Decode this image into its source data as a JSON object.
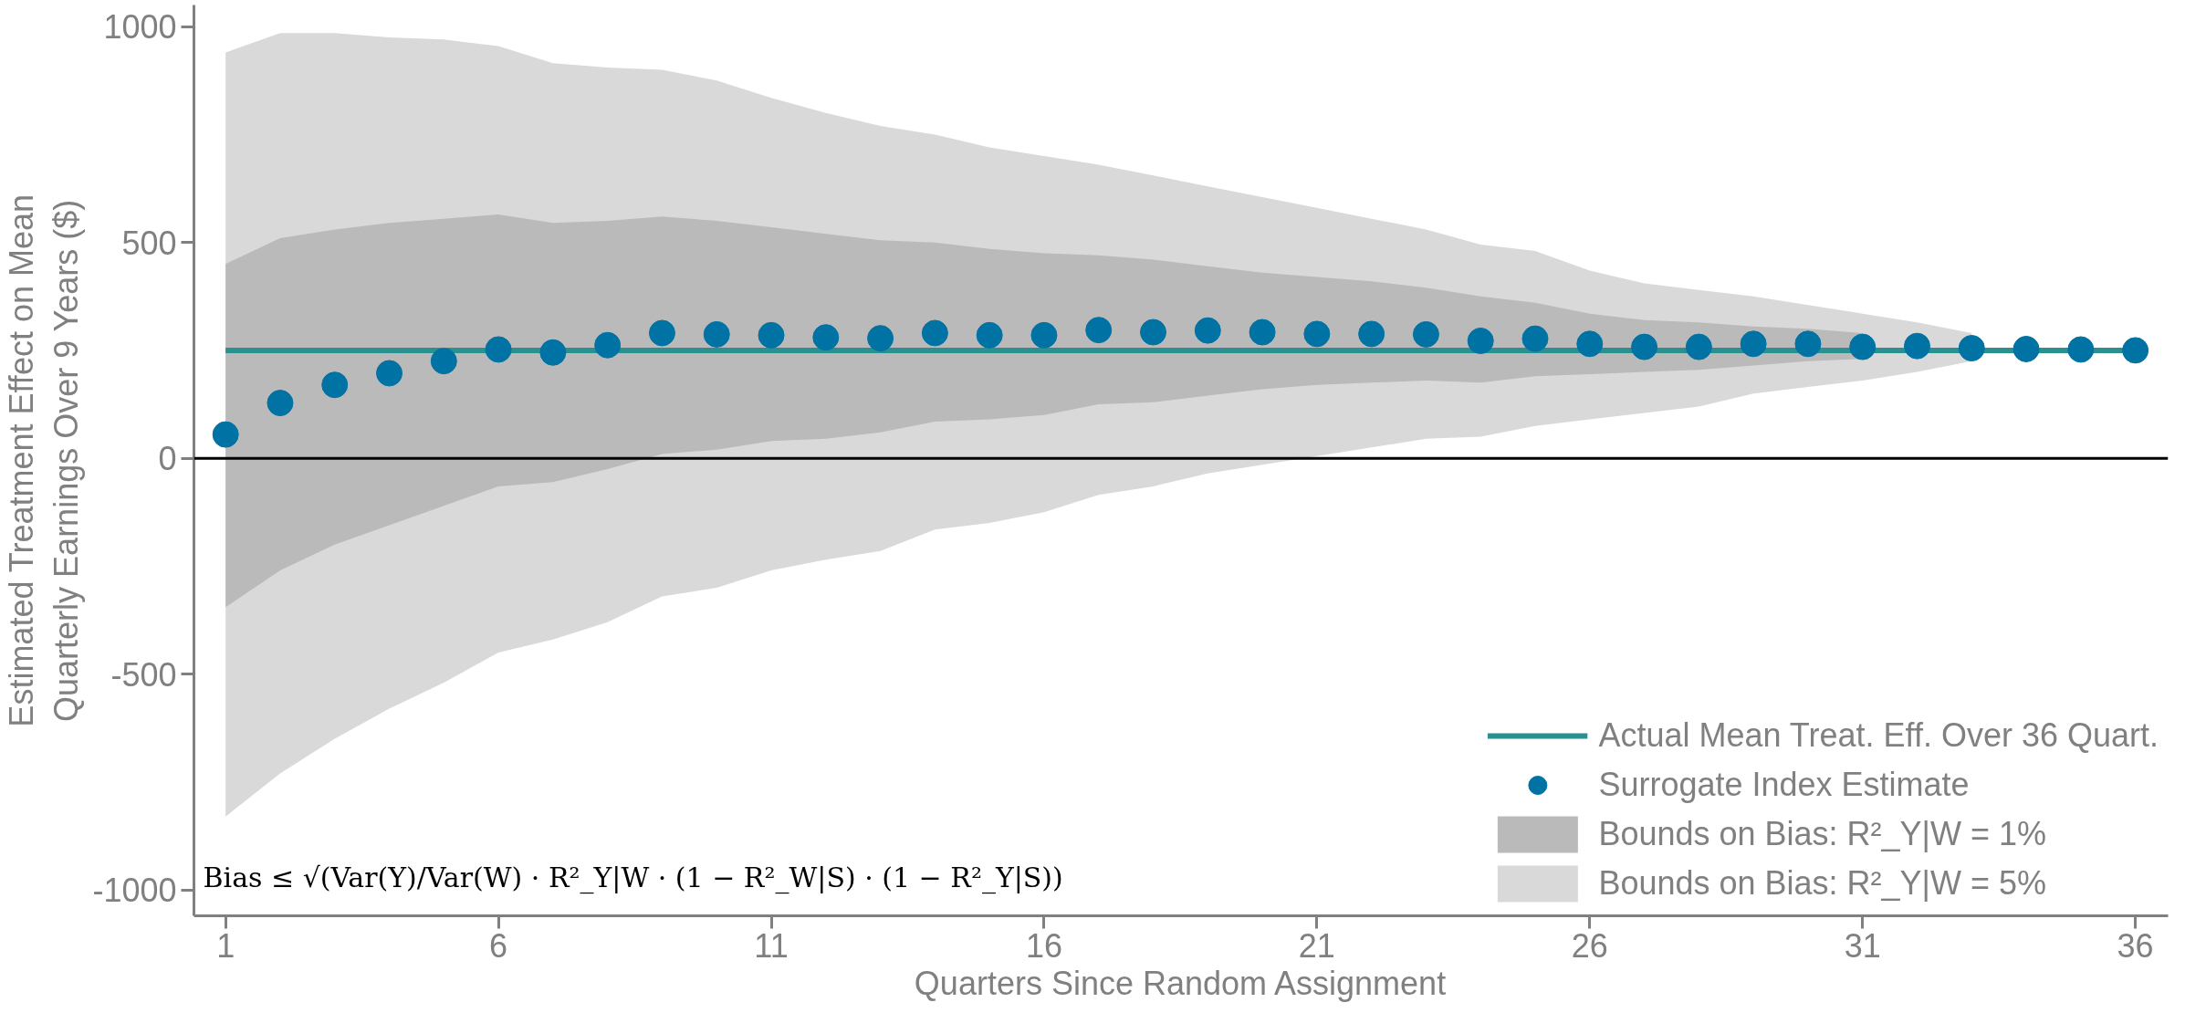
{
  "chart_data": {
    "type": "scatter",
    "xlabel": "Quarters Since Random Assignment",
    "ylabel": "Estimated Treatment Effect on Mean\nQuarterly Earnings Over 9 Years ($)",
    "x": [
      1,
      2,
      3,
      4,
      5,
      6,
      7,
      8,
      9,
      10,
      11,
      12,
      13,
      14,
      15,
      16,
      17,
      18,
      19,
      20,
      21,
      22,
      23,
      24,
      25,
      26,
      27,
      28,
      29,
      30,
      31,
      32,
      33,
      34,
      35,
      36
    ],
    "series": [
      {
        "type": "area",
        "name": "Bounds on Bias: R²_Y|W = 5%",
        "color": "#d9d9d9",
        "values": [
          null,
          null,
          null,
          null,
          null,
          null,
          null,
          null,
          null,
          null,
          null,
          null,
          null,
          null,
          null,
          null,
          null,
          null,
          null,
          null,
          null,
          null,
          null,
          null,
          null,
          null,
          null,
          null,
          null,
          null,
          null,
          null,
          null,
          null,
          null,
          null
        ],
        "upper": [
          940,
          985,
          985,
          975,
          970,
          955,
          915,
          905,
          900,
          875,
          835,
          800,
          770,
          750,
          720,
          700,
          680,
          655,
          630,
          605,
          580,
          555,
          530,
          495,
          480,
          435,
          405,
          390,
          375,
          355,
          335,
          315,
          290,
          null,
          null,
          null
        ],
        "lower": [
          -830,
          -730,
          -650,
          -580,
          -520,
          -450,
          -420,
          -380,
          -320,
          -300,
          -260,
          -235,
          -215,
          -165,
          -150,
          -125,
          -85,
          -65,
          -35,
          -15,
          5,
          25,
          45,
          50,
          75,
          90,
          105,
          120,
          150,
          165,
          180,
          200,
          225,
          null,
          null,
          null
        ]
      },
      {
        "type": "area",
        "name": "Bounds on Bias: R²_Y|W = 1%",
        "color": "#bababa",
        "values": [
          null,
          null,
          null,
          null,
          null,
          null,
          null,
          null,
          null,
          null,
          null,
          null,
          null,
          null,
          null,
          null,
          null,
          null,
          null,
          null,
          null,
          null,
          null,
          null,
          null,
          null,
          null,
          null,
          null,
          null,
          null,
          null,
          null,
          null,
          null,
          null
        ],
        "upper": [
          450,
          510,
          530,
          545,
          555,
          565,
          545,
          550,
          560,
          550,
          535,
          520,
          505,
          500,
          485,
          475,
          470,
          460,
          445,
          430,
          420,
          410,
          395,
          375,
          360,
          335,
          320,
          315,
          305,
          300,
          290,
          null,
          null,
          null,
          null,
          null
        ],
        "lower": [
          -345,
          -260,
          -200,
          -155,
          -110,
          -65,
          -55,
          -25,
          10,
          20,
          40,
          45,
          60,
          85,
          90,
          100,
          125,
          130,
          145,
          160,
          170,
          175,
          180,
          175,
          190,
          195,
          200,
          205,
          215,
          225,
          230,
          null,
          null,
          null,
          null,
          null
        ]
      },
      {
        "type": "line",
        "name": "Actual Mean Treat. Eff. Over 36 Quart.",
        "color": "#2a9090",
        "x": [
          1,
          36
        ],
        "values": [
          250,
          250
        ]
      },
      {
        "name": "Surrogate Index Estimate",
        "color": "#0072a3",
        "marker": "circle",
        "values": [
          55,
          128,
          170,
          197,
          225,
          252,
          245,
          262,
          290,
          287,
          285,
          280,
          278,
          290,
          285,
          285,
          297,
          292,
          296,
          292,
          288,
          288,
          287,
          272,
          277,
          265,
          258,
          258,
          265,
          265,
          258,
          260,
          255,
          253,
          252,
          250
        ]
      }
    ],
    "xlim": [
      0.42,
      36.6
    ],
    "ylim": [
      -1060,
      1050
    ],
    "xticks": [
      1,
      6,
      11,
      16,
      21,
      26,
      31,
      36
    ],
    "yticks": [
      -1000,
      -500,
      0,
      500,
      1000
    ],
    "ref_lines": [
      {
        "axis": "y",
        "value": 0,
        "color": "#000000"
      }
    ],
    "annotations": [
      "Bias ≤ √(Var(Y)/Var(W) · R²_Y|W · (1 − R²_W|S) · (1 − R²_Y|S))"
    ],
    "legend": "bottom right",
    "grid": false
  }
}
